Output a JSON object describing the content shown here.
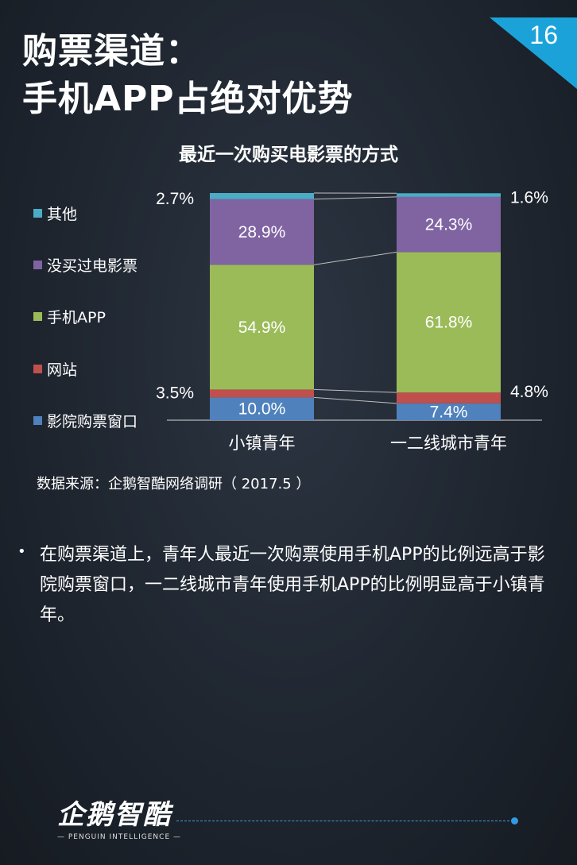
{
  "page": {
    "title_line1": "购票渠道：",
    "title_line2": "手机APP占绝对优势",
    "page_number": "16"
  },
  "chart_data": {
    "type": "bar",
    "stacked": true,
    "title": "最近一次购买电影票的方式",
    "categories": [
      "小镇青年",
      "一二线城市青年"
    ],
    "series": [
      {
        "name": "影院购票窗口",
        "values": [
          10.0,
          7.4
        ],
        "labels": [
          "10.0%",
          "7.4%"
        ],
        "color": "#4f81bd"
      },
      {
        "name": "网站",
        "values": [
          3.5,
          4.8
        ],
        "labels": [
          "3.5%",
          "4.8%"
        ],
        "color": "#c0504d"
      },
      {
        "name": "手机APP",
        "values": [
          54.9,
          61.8
        ],
        "labels": [
          "54.9%",
          "61.8%"
        ],
        "color": "#9bbb59"
      },
      {
        "name": "没买过电影票",
        "values": [
          28.9,
          24.3
        ],
        "labels": [
          "28.9%",
          "24.3%"
        ],
        "color": "#8064a2"
      },
      {
        "name": "其他",
        "values": [
          2.7,
          1.6
        ],
        "labels": [
          "2.7%",
          "1.6%"
        ],
        "color": "#4bacc6"
      }
    ],
    "ylim": [
      0,
      100
    ],
    "legend_position": "left",
    "legend_order": [
      "其他",
      "没买过电影票",
      "手机APP",
      "网站",
      "影院购票窗口"
    ],
    "grid": false
  },
  "source": "数据来源：企鹅智酷网络调研（ 2017.5 ）",
  "bullet_symbol": "•",
  "body_text": "在购票渠道上，青年人最近一次购票使用手机APP的比例远高于影院购票窗口，一二线城市青年使用手机APP的比例明显高于小镇青年。",
  "logo": {
    "main": "企鹅智酷",
    "sub": "— PENGUIN INTELLIGENCE —"
  }
}
